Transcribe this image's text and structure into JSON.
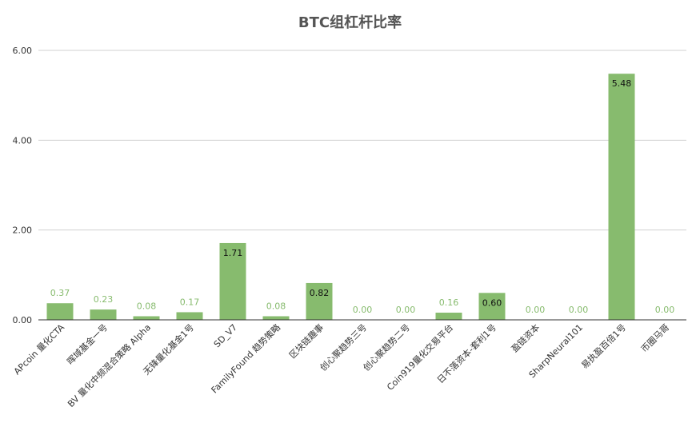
{
  "chart_data": {
    "type": "bar",
    "title": "BTC组杠杆比率",
    "categories": [
      "APcoin 量化CTA",
      "晖域基金一号",
      "BV 量化中频混合策略 Alpha",
      "无锋量化基金1号",
      "SD_V7",
      "FamilyFound 趋势策略",
      "区块链趣事",
      "创心聚趋势三号",
      "创心聚趋势二号",
      "Coin919量化交易平台",
      "日不落资本-套利1号",
      "盈链资本",
      "SharpNeural101",
      "易执盈百倍1号",
      "币圈马哥"
    ],
    "values": [
      0.37,
      0.23,
      0.08,
      0.17,
      1.71,
      0.08,
      0.82,
      0.0,
      0.0,
      0.16,
      0.6,
      0.0,
      0.0,
      5.48,
      0.0
    ],
    "value_labels": [
      "0.37",
      "0.23",
      "0.08",
      "0.17",
      "1.71",
      "0.08",
      "0.82",
      "0.00",
      "0.00",
      "0.16",
      "0.60",
      "0.00",
      "0.00",
      "5.48",
      "0.00"
    ],
    "y_ticks": [
      "0.00",
      "2.00",
      "4.00",
      "6.00"
    ],
    "ylim": [
      0,
      6
    ],
    "grid": true,
    "legend": "none",
    "colors": {
      "bar": "#87bb6e",
      "label_outside": "#87bb6e",
      "label_inside": "#111111",
      "grid": "#d0d0d0",
      "axis": "#333333",
      "text": "#333333"
    }
  }
}
